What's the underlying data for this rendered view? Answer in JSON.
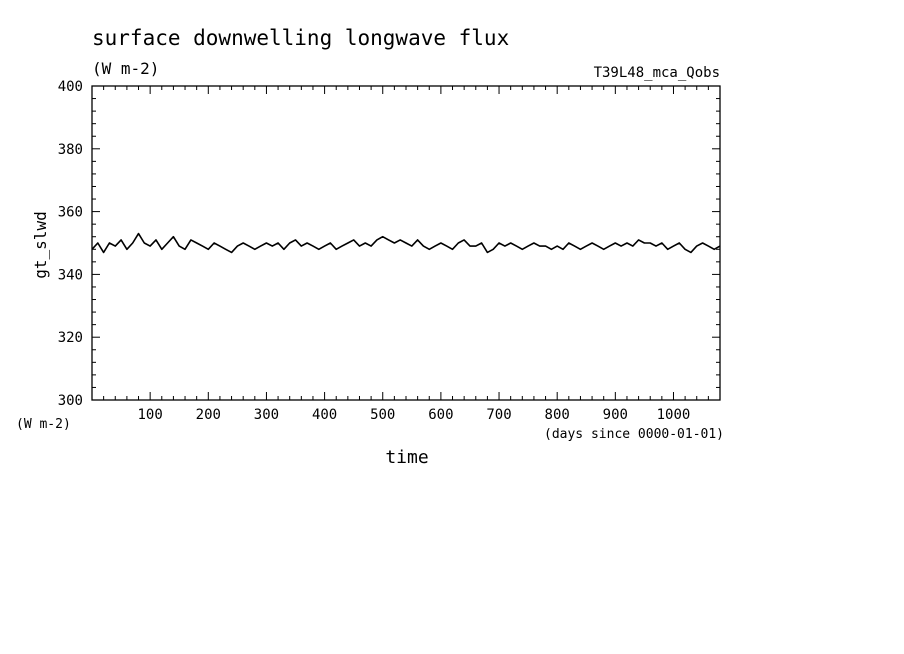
{
  "chart_data": {
    "type": "line",
    "title": "surface downwelling longwave flux",
    "subtitle": "(W m-2)",
    "annotation": "T39L48_mca_Qobs",
    "xlabel": "time",
    "xunit": "(days since 0000-01-01)",
    "ylabel": "gt_slwd",
    "yunit": "(W m-2)",
    "xlim": [
      0,
      1080
    ],
    "ylim": [
      300,
      400
    ],
    "xticks": [
      100,
      200,
      300,
      400,
      500,
      600,
      700,
      800,
      900,
      1000
    ],
    "yticks": [
      300,
      320,
      340,
      360,
      380,
      400
    ],
    "grid": false,
    "color": "#000000",
    "series": [
      {
        "x": [
          0,
          10,
          20,
          30,
          40,
          50,
          60,
          70,
          80,
          90,
          100,
          110,
          120,
          130,
          140,
          150,
          160,
          170,
          180,
          190,
          200,
          210,
          220,
          230,
          240,
          250,
          260,
          270,
          280,
          290,
          300,
          310,
          320,
          330,
          340,
          350,
          360,
          370,
          380,
          390,
          400,
          410,
          420,
          430,
          440,
          450,
          460,
          470,
          480,
          490,
          500,
          510,
          520,
          530,
          540,
          550,
          560,
          570,
          580,
          590,
          600,
          610,
          620,
          630,
          640,
          650,
          660,
          670,
          680,
          690,
          700,
          710,
          720,
          730,
          740,
          750,
          760,
          770,
          780,
          790,
          800,
          810,
          820,
          830,
          840,
          850,
          860,
          870,
          880,
          890,
          900,
          910,
          920,
          930,
          940,
          950,
          960,
          970,
          980,
          990,
          1000,
          1010,
          1020,
          1030,
          1040,
          1050,
          1060,
          1070,
          1080
        ],
        "y": [
          348,
          350,
          347,
          350,
          349,
          351,
          348,
          350,
          353,
          350,
          349,
          351,
          348,
          350,
          352,
          349,
          348,
          351,
          350,
          349,
          348,
          350,
          349,
          348,
          347,
          349,
          350,
          349,
          348,
          349,
          350,
          349,
          350,
          348,
          350,
          351,
          349,
          350,
          349,
          348,
          349,
          350,
          348,
          349,
          350,
          351,
          349,
          350,
          349,
          351,
          352,
          351,
          350,
          351,
          350,
          349,
          351,
          349,
          348,
          349,
          350,
          349,
          348,
          350,
          351,
          349,
          349,
          350,
          347,
          348,
          350,
          349,
          350,
          349,
          348,
          349,
          350,
          349,
          349,
          348,
          349,
          348,
          350,
          349,
          348,
          349,
          350,
          349,
          348,
          349,
          350,
          349,
          350,
          349,
          351,
          350,
          350,
          349,
          350,
          348,
          349,
          350,
          348,
          347,
          349,
          350,
          349,
          348,
          349
        ]
      }
    ]
  }
}
